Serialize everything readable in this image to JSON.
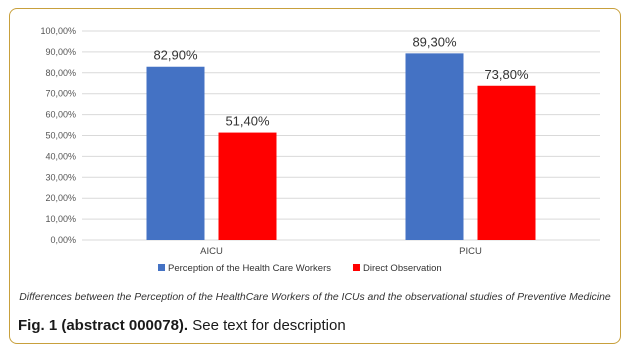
{
  "chart_data": {
    "type": "bar",
    "categories": [
      "AICU",
      "PICU"
    ],
    "series": [
      {
        "name": "Perception of the Health Care Workers",
        "values": [
          82.9,
          89.3
        ],
        "labels": [
          "82,90%",
          "89,30%"
        ],
        "color": "#4472c4"
      },
      {
        "name": "Direct Observation",
        "values": [
          51.4,
          73.8
        ],
        "labels": [
          "51,40%",
          "73,80%"
        ],
        "color": "#ff0000"
      }
    ],
    "yticks": [
      "0,00%",
      "10,00%",
      "20,00%",
      "30,00%",
      "40,00%",
      "50,00%",
      "60,00%",
      "70,00%",
      "80,00%",
      "90,00%",
      "100,00%"
    ],
    "ylim": [
      0,
      100
    ],
    "grid": true,
    "legend_position": "bottom"
  },
  "chart_caption": "Differences between the Perception of the HealthCare Workers of the ICUs and the observational studies of Preventive Medicine",
  "figure": {
    "label": "Fig. 1 (abstract 000078).",
    "text": "See text for description"
  },
  "colors": {
    "border": "#c8a03c",
    "grid": "#d9d9d9"
  }
}
